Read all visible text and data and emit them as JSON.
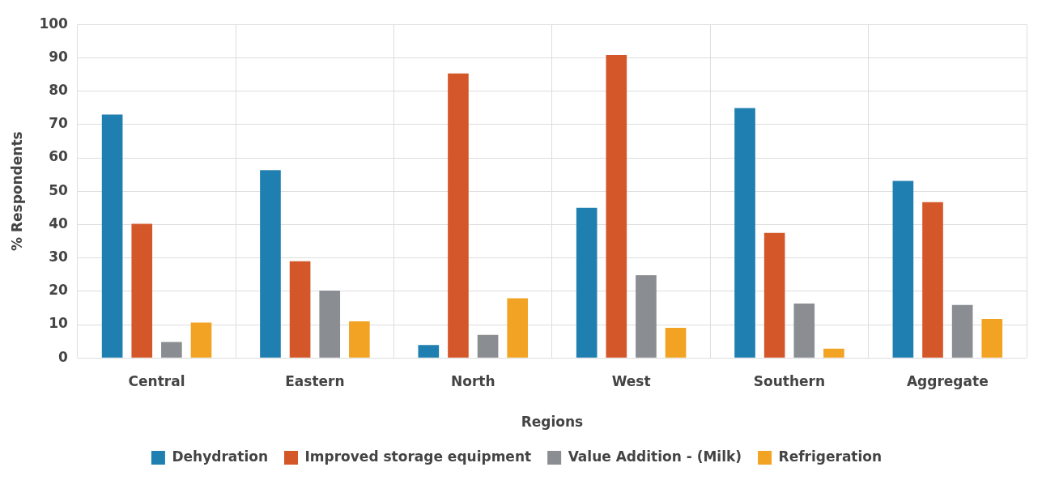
{
  "chart_data": {
    "type": "bar",
    "xlabel": "Regions",
    "ylabel": "% Respondents",
    "categories": [
      "Central",
      "Eastern",
      "North",
      "West",
      "Southern",
      "Aggregate"
    ],
    "series": [
      {
        "name": "Dehydration",
        "color": "#1f7fb0",
        "values": [
          73,
          56.3,
          3.9,
          45,
          74.9,
          53.1
        ]
      },
      {
        "name": "Improved storage equipment",
        "color": "#d4572a",
        "values": [
          40.2,
          29,
          85.3,
          90.8,
          37.5,
          46.7
        ]
      },
      {
        "name": "Value Addition - (Milk)",
        "color": "#8a8d91",
        "values": [
          4.8,
          20.2,
          6.9,
          24.8,
          16.3,
          15.9
        ]
      },
      {
        "name": "Refrigeration",
        "color": "#f2a324",
        "values": [
          10.6,
          11,
          17.9,
          9,
          2.8,
          11.7
        ]
      }
    ],
    "ylim": [
      0,
      100
    ],
    "yticks": [
      0,
      10,
      20,
      30,
      40,
      50,
      60,
      70,
      80,
      90,
      100
    ],
    "grid": true,
    "legend": "bottom"
  }
}
